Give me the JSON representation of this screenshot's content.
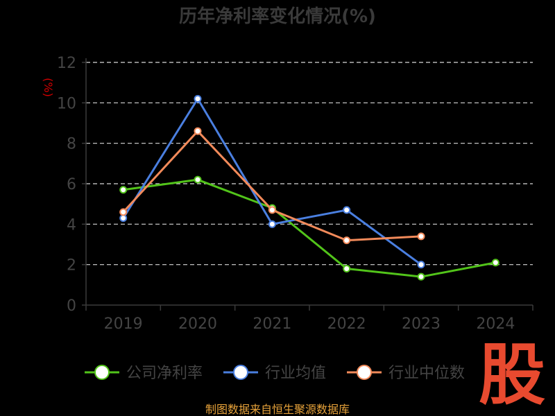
{
  "chart_data": {
    "type": "line",
    "title": "历年净利率变化情况(%)",
    "ylabel": "(%)",
    "xlabel": "",
    "categories": [
      "2019",
      "2020",
      "2021",
      "2022",
      "2023",
      "2024"
    ],
    "yticks": [
      "0",
      "2",
      "4",
      "6",
      "8",
      "10",
      "12"
    ],
    "ylim": [
      0,
      12
    ],
    "grid": true,
    "legend_position": "bottom",
    "series": [
      {
        "name": "公司净利率",
        "color": "#52c41a",
        "values": [
          5.7,
          6.2,
          4.8,
          1.8,
          1.4,
          2.1
        ]
      },
      {
        "name": "行业均值",
        "color": "#4a7fe0",
        "values": [
          4.3,
          10.2,
          4.0,
          4.7,
          2.0,
          null
        ]
      },
      {
        "name": "行业中位数",
        "color": "#f28a5a",
        "values": [
          4.6,
          8.6,
          4.7,
          3.2,
          3.4,
          null
        ]
      }
    ]
  },
  "footer": {
    "source": "制图数据来自恒生聚源数据库",
    "logo": "股"
  }
}
